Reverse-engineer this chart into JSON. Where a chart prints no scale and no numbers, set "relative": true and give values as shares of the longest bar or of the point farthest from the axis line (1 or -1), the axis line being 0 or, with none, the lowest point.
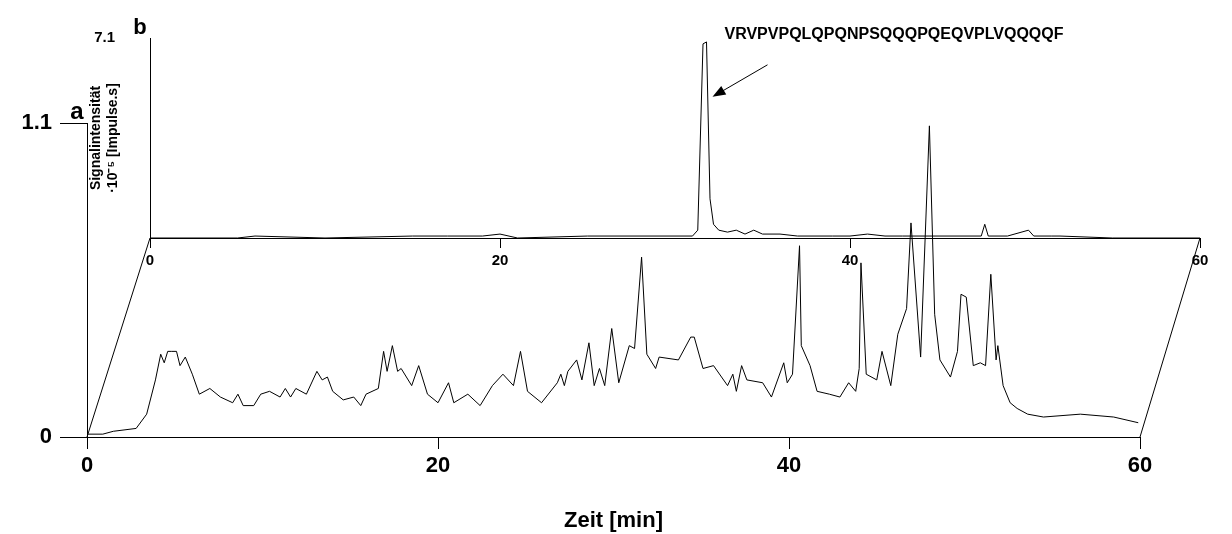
{
  "chart_data": [
    {
      "type": "line",
      "color": "#000000",
      "x": [
        0,
        0.9,
        1.5,
        2.8,
        3.4,
        3.9,
        4.2,
        4.4,
        4.6,
        4.8,
        5.1,
        5.3,
        5.6,
        6.0,
        6.4,
        7.0,
        7.6,
        8.3,
        8.6,
        8.9,
        9.5,
        9.9,
        10.4,
        11.0,
        11.3,
        11.6,
        11.9,
        12.5,
        13.1,
        13.4,
        13.7,
        14.0,
        14.6,
        15.2,
        15.6,
        15.9,
        16.6,
        16.9,
        17.1,
        17.4,
        17.7,
        17.9,
        18.5,
        18.9,
        19.4,
        20.0,
        20.6,
        20.9,
        21.7,
        22.4,
        23.1,
        23.7,
        24.3,
        24.7,
        25.1,
        25.9,
        26.8,
        27.0,
        27.2,
        27.4,
        27.9,
        28.2,
        28.6,
        28.9,
        29.2,
        29.5,
        29.9,
        30.3,
        30.9,
        31.2,
        31.6,
        31.9,
        32.4,
        32.6,
        33.7,
        34.4,
        34.6,
        35.1,
        35.7,
        36.5,
        36.8,
        37.0,
        37.3,
        37.6,
        38.5,
        39.0,
        39.7,
        39.9,
        40.2,
        40.6,
        40.7,
        41.2,
        41.6,
        42.3,
        42.9,
        43.4,
        43.8,
        44.0,
        44.1,
        44.4,
        45.0,
        45.3,
        45.8,
        46.2,
        46.7,
        46.95,
        47.5,
        48.0,
        48.3,
        48.6,
        49.2,
        49.6,
        49.8,
        50.1,
        50.5,
        50.9,
        51.2,
        51.5,
        51.8,
        51.9,
        52.2,
        52.6,
        53.0,
        53.6,
        54.5,
        56.6,
        58.5,
        59.9
      ],
      "values": [
        0.01,
        0.01,
        0.02,
        0.03,
        0.08,
        0.2,
        0.29,
        0.26,
        0.3,
        0.3,
        0.3,
        0.25,
        0.28,
        0.22,
        0.15,
        0.17,
        0.14,
        0.12,
        0.15,
        0.11,
        0.11,
        0.15,
        0.16,
        0.14,
        0.17,
        0.14,
        0.17,
        0.15,
        0.23,
        0.2,
        0.21,
        0.16,
        0.13,
        0.14,
        0.11,
        0.15,
        0.17,
        0.3,
        0.23,
        0.32,
        0.23,
        0.24,
        0.18,
        0.25,
        0.15,
        0.12,
        0.19,
        0.12,
        0.15,
        0.11,
        0.18,
        0.22,
        0.18,
        0.3,
        0.16,
        0.12,
        0.19,
        0.22,
        0.18,
        0.23,
        0.27,
        0.2,
        0.33,
        0.18,
        0.24,
        0.18,
        0.38,
        0.19,
        0.32,
        0.31,
        0.63,
        0.29,
        0.24,
        0.28,
        0.27,
        0.35,
        0.35,
        0.24,
        0.25,
        0.18,
        0.22,
        0.16,
        0.25,
        0.2,
        0.19,
        0.14,
        0.26,
        0.19,
        0.22,
        0.67,
        0.32,
        0.25,
        0.16,
        0.15,
        0.14,
        0.19,
        0.16,
        0.24,
        0.61,
        0.22,
        0.2,
        0.3,
        0.18,
        0.36,
        0.45,
        0.75,
        0.28,
        1.09,
        0.43,
        0.27,
        0.21,
        0.3,
        0.5,
        0.49,
        0.25,
        0.26,
        0.25,
        0.57,
        0.27,
        0.32,
        0.18,
        0.12,
        0.1,
        0.08,
        0.07,
        0.08,
        0.07,
        0.05
      ],
      "xlim": [
        0,
        60
      ],
      "xticks": [
        0,
        20,
        40,
        60
      ],
      "ylim": [
        0,
        1.1
      ],
      "yticks": [
        0,
        1.1
      ],
      "xlabel": "Zeit [min]",
      "annotations": [
        "a"
      ]
    },
    {
      "type": "line",
      "color": "#000000",
      "x": [
        0,
        5,
        6,
        10,
        15,
        17,
        19,
        20,
        21,
        25,
        28,
        30,
        31,
        31.3,
        31.6,
        31.8,
        32.0,
        32.2,
        32.5,
        33,
        33.5,
        34,
        34.5,
        35,
        36,
        37,
        38,
        39,
        40,
        41,
        42,
        43,
        47.5,
        47.7,
        47.9,
        49,
        50.2,
        50.5,
        51.5,
        52,
        55,
        60
      ],
      "values": [
        0,
        0,
        0.01,
        0,
        0.01,
        0.01,
        0.01,
        0.02,
        0,
        0.01,
        0.01,
        0.01,
        0.01,
        0.04,
        0.99,
        1,
        0.2,
        0.07,
        0.04,
        0.03,
        0.04,
        0.02,
        0.04,
        0.02,
        0.02,
        0.01,
        0.01,
        0.01,
        0.01,
        0.02,
        0.01,
        0.01,
        0.01,
        0.07,
        0.01,
        0.01,
        0.04,
        0.01,
        0.01,
        0.01,
        0,
        0
      ],
      "relative": true,
      "xlim": [
        0,
        60
      ],
      "xticks": [
        0,
        20,
        40,
        60
      ],
      "ylabel": "Signalintensität ·10⁻⁵ [Impulse.s]",
      "annotations": [
        "b",
        "7.1",
        "VRVPVPQLQPQNPSQQQPQEQVPLVQQQQF"
      ]
    }
  ]
}
